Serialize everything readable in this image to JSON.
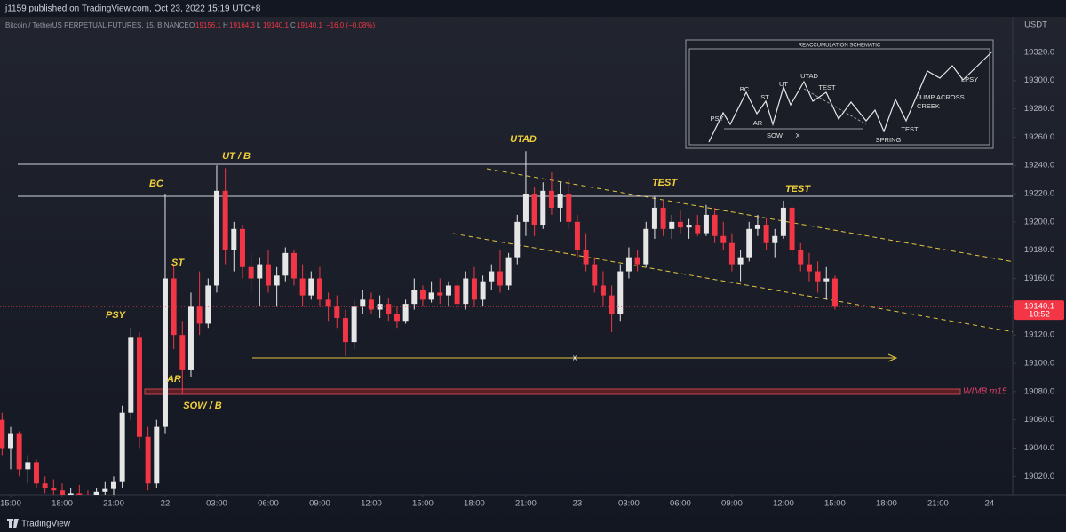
{
  "header": {
    "publisher": "j1159 published on TradingView.com, Oct 23, 2022 15:19 UTC+8",
    "symbol": "Bitcoin / TetherUS PERPETUAL FUTURES, 15, BINANCE",
    "ohlc": [
      {
        "key": "O",
        "value": 19156.1
      },
      {
        "key": "H",
        "value": 19164.3
      },
      {
        "key": "L",
        "value": 19140.1
      },
      {
        "key": "C",
        "value": 19140.1
      }
    ],
    "change": "−16.0 (−0.08%)"
  },
  "footer": "TradingView",
  "chart_data": {
    "type": "candlestick",
    "y_unit": "USDT",
    "x": [
      -9.5,
      -9,
      -8.5,
      -8,
      -7.5,
      -7,
      -6.5,
      -6,
      -5.5,
      -5,
      -4.5,
      -4,
      -3.5,
      -3,
      -2.5,
      -2,
      -1.5,
      -1,
      -0.5,
      0,
      0.5,
      1,
      1.5,
      2,
      2.5,
      3,
      3.5,
      4,
      4.5,
      5,
      5.5,
      6,
      6.5,
      7,
      7.5,
      8,
      8.5,
      9,
      9.5,
      10,
      10.5,
      11,
      11.5,
      12,
      12.5,
      13,
      13.5,
      14,
      14.5,
      15,
      15.5,
      16,
      16.5,
      17,
      17.5,
      18,
      18.5,
      19,
      19.5,
      20,
      20.5,
      21,
      21.5,
      22,
      22.5,
      23,
      23.5,
      24,
      24.5,
      25,
      25.5,
      26,
      26.5,
      27,
      27.5,
      28,
      28.5,
      29,
      29.5,
      30,
      30.5,
      31,
      31.5,
      32,
      32.5,
      33,
      33.5,
      34,
      34.5,
      35,
      35.5,
      36,
      36.5,
      37,
      37.5,
      38,
      38.5,
      39
    ],
    "open": [
      19060,
      19040,
      19050,
      19025,
      19030,
      19015,
      19012,
      19010,
      19005,
      19008,
      19006,
      19004,
      19009,
      19011,
      19016,
      19065,
      19118,
      19048,
      19015,
      19055,
      19160,
      19120,
      19095,
      19140,
      19128,
      19155,
      19222,
      19180,
      19195,
      19168,
      19160,
      19170,
      19155,
      19162,
      19178,
      19160,
      19148,
      19160,
      19145,
      19140,
      19132,
      19115,
      19140,
      19145,
      19138,
      19142,
      19135,
      19130,
      19142,
      19152,
      19145,
      19150,
      19148,
      19155,
      19142,
      19160,
      19145,
      19158,
      19165,
      19155,
      19175,
      19200,
      19220,
      19198,
      19222,
      19210,
      19220,
      19200,
      19180,
      19170,
      19155,
      19148,
      19135,
      19165,
      19175,
      19170,
      19195,
      19210,
      19195,
      19200,
      19196,
      19198,
      19192,
      19205,
      19190,
      19185,
      19170,
      19175,
      19195,
      19198,
      19185,
      19190,
      19210,
      19180,
      19170,
      19165,
      19158,
      19160
    ],
    "high": [
      19065,
      19055,
      19052,
      19035,
      19032,
      19020,
      19018,
      19015,
      19012,
      19014,
      19010,
      19012,
      19016,
      19020,
      19070,
      19125,
      19122,
      19055,
      19060,
      19220,
      19170,
      19130,
      19150,
      19165,
      19160,
      19240,
      19238,
      19200,
      19198,
      19178,
      19175,
      19180,
      19168,
      19182,
      19180,
      19170,
      19165,
      19168,
      19150,
      19148,
      19138,
      19145,
      19152,
      19150,
      19148,
      19146,
      19140,
      19145,
      19160,
      19155,
      19158,
      19160,
      19158,
      19160,
      19165,
      19168,
      19162,
      19170,
      19180,
      19178,
      19205,
      19250,
      19225,
      19228,
      19235,
      19228,
      19230,
      19205,
      19192,
      19175,
      19165,
      19155,
      19170,
      19182,
      19180,
      19200,
      19218,
      19215,
      19205,
      19208,
      19202,
      19205,
      19212,
      19210,
      19200,
      19192,
      19180,
      19200,
      19205,
      19203,
      19195,
      19215,
      19212,
      19185,
      19178,
      19172,
      19168,
      19162
    ],
    "low": [
      19035,
      19025,
      19020,
      19015,
      19012,
      19008,
      19005,
      19002,
      19000,
      19003,
      19000,
      19001,
      19004,
      19006,
      19012,
      19060,
      19040,
      19010,
      19012,
      19050,
      19110,
      19078,
      19090,
      19120,
      19125,
      19150,
      19170,
      19165,
      19160,
      19150,
      19140,
      19150,
      19140,
      19158,
      19155,
      19140,
      19145,
      19140,
      19130,
      19125,
      19105,
      19110,
      19135,
      19135,
      19132,
      19130,
      19125,
      19128,
      19138,
      19140,
      19143,
      19142,
      19140,
      19138,
      19138,
      19140,
      19140,
      19152,
      19150,
      19152,
      19170,
      19190,
      19190,
      19195,
      19205,
      19200,
      19195,
      19175,
      19165,
      19150,
      19140,
      19122,
      19130,
      19160,
      19165,
      19168,
      19188,
      19190,
      19188,
      19192,
      19188,
      19190,
      19190,
      19185,
      19180,
      19165,
      19158,
      19172,
      19190,
      19180,
      19175,
      19188,
      19175,
      19165,
      19158,
      19150,
      19145,
      19138
    ],
    "close": [
      19040,
      19050,
      19025,
      19030,
      19015,
      19012,
      19010,
      19005,
      19008,
      19006,
      19004,
      19009,
      19011,
      19016,
      19065,
      19118,
      19048,
      19015,
      19055,
      19160,
      19120,
      19095,
      19140,
      19128,
      19155,
      19222,
      19180,
      19195,
      19168,
      19160,
      19170,
      19155,
      19162,
      19178,
      19160,
      19148,
      19160,
      19145,
      19140,
      19132,
      19115,
      19140,
      19145,
      19138,
      19142,
      19135,
      19130,
      19142,
      19152,
      19145,
      19150,
      19148,
      19155,
      19142,
      19160,
      19145,
      19158,
      19165,
      19155,
      19175,
      19200,
      19220,
      19198,
      19222,
      19210,
      19220,
      19200,
      19180,
      19170,
      19155,
      19148,
      19135,
      19165,
      19175,
      19170,
      19195,
      19210,
      19195,
      19200,
      19196,
      19198,
      19192,
      19205,
      19190,
      19185,
      19170,
      19175,
      19195,
      19198,
      19185,
      19190,
      19210,
      19180,
      19170,
      19165,
      19158,
      19160,
      19140
    ],
    "up_color": "#e6e6e6",
    "down_color": "#f23645",
    "xlim": [
      -9.62,
      49.35
    ],
    "xticks": [
      {
        "value": -9,
        "label": "15:00"
      },
      {
        "value": -6,
        "label": "18:00"
      },
      {
        "value": -3,
        "label": "21:00"
      },
      {
        "value": 0,
        "label": "22"
      },
      {
        "value": 3,
        "label": "03:00"
      },
      {
        "value": 6,
        "label": "06:00"
      },
      {
        "value": 9,
        "label": "09:00"
      },
      {
        "value": 12,
        "label": "12:00"
      },
      {
        "value": 15,
        "label": "15:00"
      },
      {
        "value": 18,
        "label": "18:00"
      },
      {
        "value": 21,
        "label": "21:00"
      },
      {
        "value": 24,
        "label": "23"
      },
      {
        "value": 27,
        "label": "03:00"
      },
      {
        "value": 30,
        "label": "06:00"
      },
      {
        "value": 33,
        "label": "09:00"
      },
      {
        "value": 36,
        "label": "12:00"
      },
      {
        "value": 39,
        "label": "15:00"
      },
      {
        "value": 42,
        "label": "18:00"
      },
      {
        "value": 45,
        "label": "21:00"
      },
      {
        "value": 48,
        "label": "24"
      }
    ],
    "ylim": [
      19007,
      19335
    ],
    "yticks": [
      {
        "value": 19020,
        "label": "19020.0"
      },
      {
        "value": 19040,
        "label": "19040.0"
      },
      {
        "value": 19060,
        "label": "19060.0"
      },
      {
        "value": 19080,
        "label": "19080.0"
      },
      {
        "value": 19100,
        "label": "19100.0"
      },
      {
        "value": 19120,
        "label": "19120.0"
      },
      {
        "value": 19140,
        "label": "19140.0"
      },
      {
        "value": 19160,
        "label": "19160.0"
      },
      {
        "value": 19180,
        "label": "19180.0"
      },
      {
        "value": 19200,
        "label": "19200.0"
      },
      {
        "value": 19220,
        "label": "19220.0"
      },
      {
        "value": 19240,
        "label": "19240.0"
      },
      {
        "value": 19260,
        "label": "19260.0"
      },
      {
        "value": 19280,
        "label": "19280.0"
      },
      {
        "value": 19300,
        "label": "19300.0"
      },
      {
        "value": 19320,
        "label": "19320.0"
      }
    ],
    "grid": false,
    "last_price": 19140.1,
    "countdown": "10:52",
    "last_color": "#f23645",
    "annotations": [
      "PSY",
      "BC",
      "UT / B",
      "ST",
      "AR",
      "SOW / B",
      "UTAD",
      "TEST",
      "TEST",
      "x",
      "WIMB m15"
    ],
    "schematic": {
      "title": "REACCUMULATION SCHEMATIC",
      "labels": [
        "PSY",
        "BC",
        "ST",
        "AR",
        "UT",
        "UTAD",
        "TEST",
        "SOW",
        "X",
        "SPRING",
        "TEST",
        "JUMP ACROSS",
        "CREEK",
        "LPSY"
      ]
    }
  }
}
